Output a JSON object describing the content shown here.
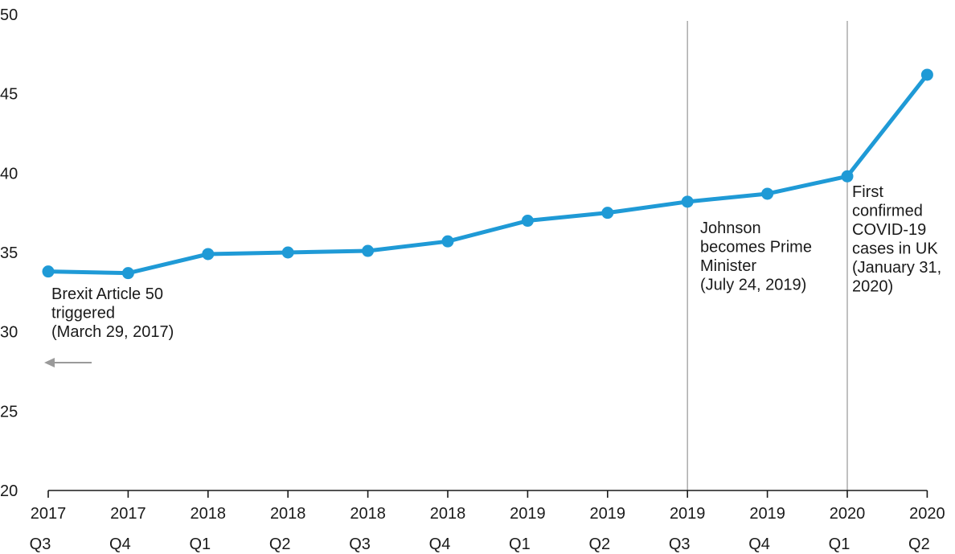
{
  "chart_data": {
    "type": "line",
    "title": "",
    "xlabel": "",
    "ylabel": "",
    "ylim": [
      20,
      50
    ],
    "yticks": [
      20,
      25,
      30,
      35,
      40,
      45,
      50
    ],
    "categories": [
      {
        "year": "2017",
        "quarter": "Q3"
      },
      {
        "year": "2017",
        "quarter": "Q4"
      },
      {
        "year": "2018",
        "quarter": "Q1"
      },
      {
        "year": "2018",
        "quarter": "Q2"
      },
      {
        "year": "2018",
        "quarter": "Q3"
      },
      {
        "year": "2018",
        "quarter": "Q4"
      },
      {
        "year": "2019",
        "quarter": "Q1"
      },
      {
        "year": "2019",
        "quarter": "Q2"
      },
      {
        "year": "2019",
        "quarter": "Q3"
      },
      {
        "year": "2019",
        "quarter": "Q4"
      },
      {
        "year": "2020",
        "quarter": "Q1"
      },
      {
        "year": "2020",
        "quarter": "Q2"
      }
    ],
    "series": [
      {
        "color": "#1f9ad6",
        "values": [
          33.8,
          33.7,
          34.9,
          35.0,
          35.1,
          35.7,
          37.0,
          37.5,
          38.2,
          38.7,
          39.8,
          46.2
        ]
      }
    ],
    "grid": false,
    "legend": "none",
    "annotations": [
      {
        "id": "brexit",
        "lines": [
          "Brexit Article 50",
          "triggered",
          "(March 29, 2017)"
        ],
        "marker": "arrow-left",
        "marker_color": "#9a9a9a"
      },
      {
        "id": "johnson",
        "lines": [
          "Johnson",
          "becomes Prime",
          "Minister",
          "(July 24, 2019)"
        ],
        "marker": "vertical-line",
        "category_index": 8,
        "marker_color": "#b0b0b0"
      },
      {
        "id": "covid",
        "lines": [
          "First",
          "confirmed",
          "COVID-19",
          "cases in UK",
          "(January 31,",
          "2020)"
        ],
        "marker": "vertical-line",
        "category_index": 10,
        "marker_color": "#b0b0b0"
      }
    ]
  }
}
